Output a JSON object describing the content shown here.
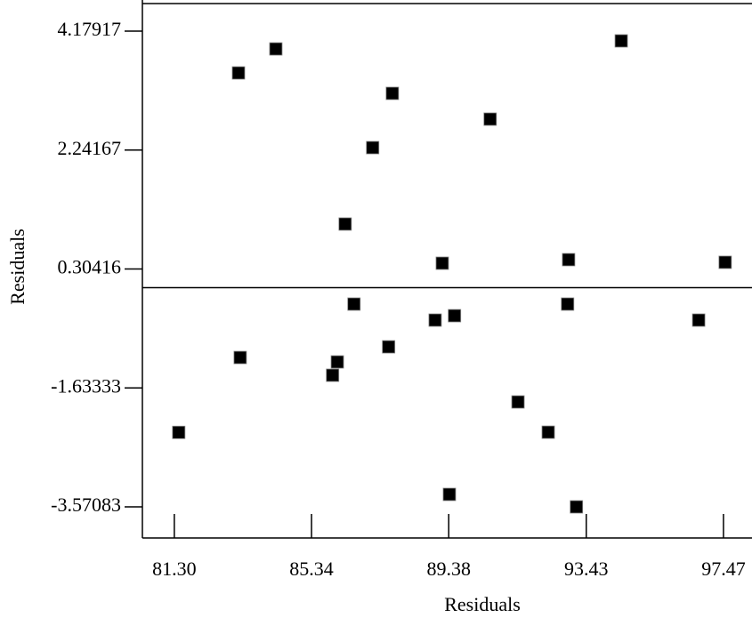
{
  "chart_data": {
    "type": "scatter",
    "x_label": "Residuals",
    "y_label": "Residuals",
    "xlim": [
      80.36,
      98.31
    ],
    "ylim": [
      -4.078,
      4.686
    ],
    "xticks": [
      {
        "value": 81.3,
        "label": "81.30"
      },
      85.34,
      89.38,
      93.43,
      97.47
    ],
    "yticks": [
      4.17917,
      2.24167,
      0.30416,
      -1.63333,
      -3.57083
    ],
    "reference_line": 0,
    "color": "#000000",
    "x": [
      81.43,
      83.19,
      83.24,
      84.29,
      85.96,
      86.1,
      86.33,
      86.59,
      87.14,
      87.61,
      87.72,
      88.98,
      89.19,
      89.4,
      89.55,
      90.6,
      91.42,
      92.31,
      92.88,
      92.91,
      93.14,
      94.46,
      96.74,
      97.52
    ],
    "values": [
      -2.358,
      3.498,
      -1.138,
      3.889,
      -1.427,
      -1.21,
      1.036,
      -0.268,
      2.281,
      -0.964,
      3.165,
      -0.529,
      0.398,
      -3.368,
      -0.457,
      2.745,
      -1.862,
      -2.355,
      -0.268,
      0.456,
      -3.571,
      4.02,
      -0.529,
      0.413
    ]
  }
}
